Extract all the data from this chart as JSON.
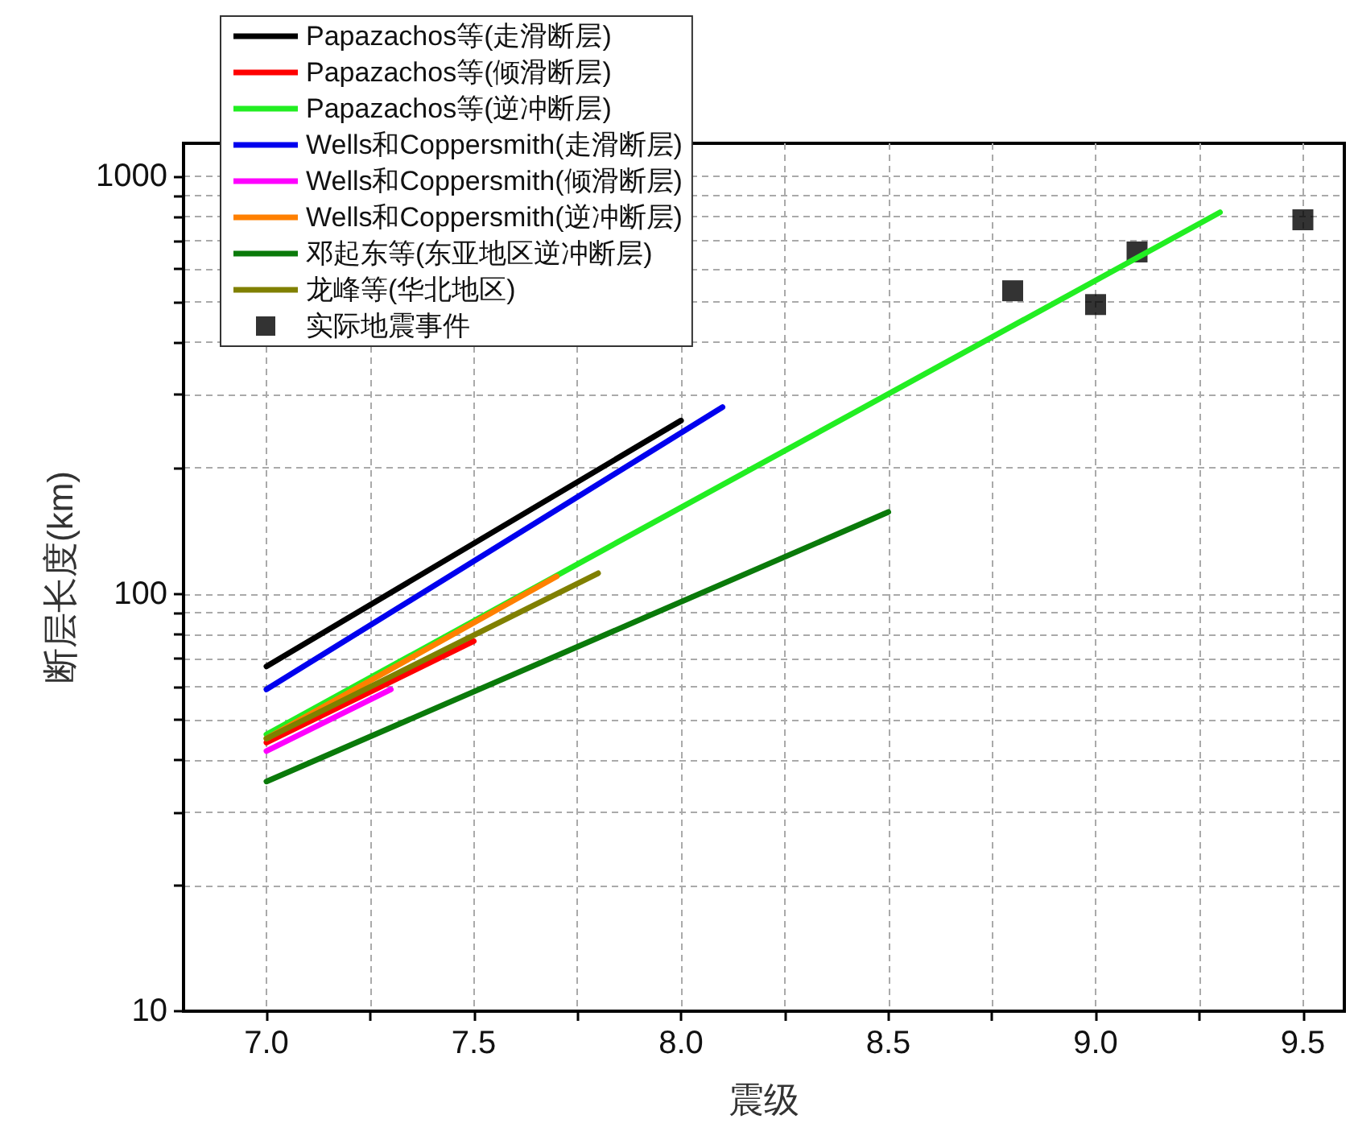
{
  "chart_data": {
    "type": "line",
    "xlabel": "震级",
    "ylabel": "断层长度(km)",
    "log": "y",
    "grid": true,
    "legend": "top left",
    "line_style": "solid",
    "xlim": [
      6.8,
      9.6
    ],
    "ylim": [
      10,
      1200
    ],
    "xticks": [
      {
        "value": 7,
        "label": "7.0"
      },
      {
        "value": 7.25,
        "label": null
      },
      {
        "value": 7.5,
        "label": "7.5"
      },
      {
        "value": 7.75,
        "label": null
      },
      {
        "value": 8,
        "label": "8.0"
      },
      {
        "value": 8.25,
        "label": null
      },
      {
        "value": 8.5,
        "label": "8.5"
      },
      {
        "value": 8.75,
        "label": null
      },
      {
        "value": 9,
        "label": "9.0"
      },
      {
        "value": 9.25,
        "label": null
      },
      {
        "value": 9.5,
        "label": "9.5"
      }
    ],
    "yticks": [
      10,
      {
        "value": 20,
        "label": null
      },
      {
        "value": 30,
        "label": null
      },
      {
        "value": 40,
        "label": null
      },
      {
        "value": 50,
        "label": null
      },
      {
        "value": 60,
        "label": null
      },
      {
        "value": 70,
        "label": null
      },
      {
        "value": 80,
        "label": null
      },
      {
        "value": 90,
        "label": null
      },
      100,
      {
        "value": 200,
        "label": null
      },
      {
        "value": 300,
        "label": null
      },
      {
        "value": 400,
        "label": null
      },
      {
        "value": 500,
        "label": null
      },
      {
        "value": 600,
        "label": null
      },
      {
        "value": 700,
        "label": null
      },
      {
        "value": 800,
        "label": null
      },
      {
        "value": 900,
        "label": null
      },
      1000
    ],
    "series": [
      {
        "name": "Papazachos等(走滑断层)",
        "color": "#000000",
        "x": [
          7.0,
          8.0
        ],
        "values": [
          67,
          260
        ]
      },
      {
        "name": "Papazachos等(倾滑断层)",
        "color": "#ff0000",
        "x": [
          7.0,
          7.5
        ],
        "values": [
          44,
          77
        ]
      },
      {
        "name": "Papazachos等(逆冲断层)",
        "color": "#22ee22",
        "x": [
          7.0,
          9.3
        ],
        "values": [
          46,
          820
        ]
      },
      {
        "name": "Wells和Coppersmith(走滑断层)",
        "color": "#0000ee",
        "x": [
          7.0,
          8.1
        ],
        "values": [
          59,
          280
        ]
      },
      {
        "name": "Wells和Coppersmith(倾滑断层)",
        "color": "#ff00ff",
        "x": [
          7.0,
          7.3
        ],
        "values": [
          42,
          59
        ]
      },
      {
        "name": "Wells和Coppersmith(逆冲断层)",
        "color": "#ff8000",
        "x": [
          7.0,
          7.7
        ],
        "values": [
          45,
          110
        ]
      },
      {
        "name": "邓起东等(东亚地区逆冲断层)",
        "color": "#0a7a0a",
        "x": [
          7.0,
          8.5
        ],
        "values": [
          35.5,
          157
        ]
      },
      {
        "name": "龙峰等(华北地区)",
        "color": "#808000",
        "x": [
          7.0,
          7.8
        ],
        "values": [
          45,
          112
        ]
      },
      {
        "name": "实际地震事件",
        "type": "scatter",
        "marker": "square",
        "color": "#000000",
        "x": [
          8.8,
          9.0,
          9.1,
          9.5
        ],
        "values": [
          532,
          493,
          659,
          787
        ]
      }
    ]
  }
}
